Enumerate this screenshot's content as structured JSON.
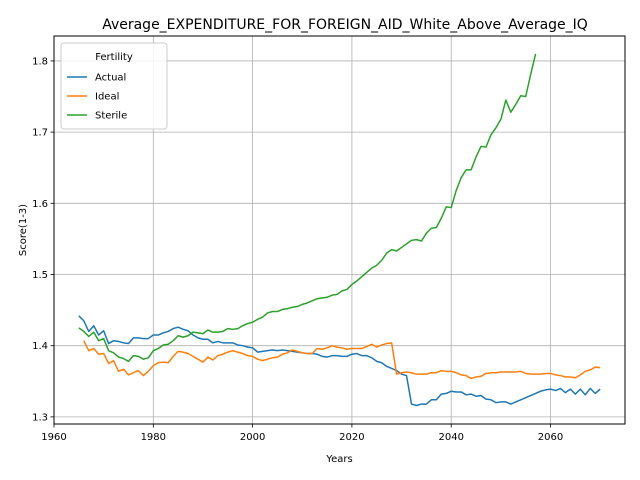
{
  "chart_data": {
    "type": "line",
    "title": "Average_EXPENDITURE_FOR_FOREIGN_AID_White_Above_Average_IQ",
    "xlabel": "Years",
    "ylabel": "Score(1-3)",
    "xlim": [
      1960,
      2075
    ],
    "ylim": [
      1.29,
      1.835
    ],
    "xticks": [
      1960,
      1980,
      2000,
      2020,
      2040,
      2060
    ],
    "yticks": [
      1.3,
      1.4,
      1.5,
      1.6,
      1.7,
      1.8
    ],
    "xtick_labels": [
      "1960",
      "1980",
      "2000",
      "2020",
      "2040",
      "2060"
    ],
    "ytick_labels": [
      "1.3",
      "1.4",
      "1.5",
      "1.6",
      "1.7",
      "1.8"
    ],
    "grid": true,
    "legend": {
      "title": "Fertility",
      "position": "top-left"
    },
    "series": [
      {
        "name": "Actual",
        "color": "#1f77b4",
        "points": [
          [
            1965,
            1.442
          ],
          [
            1966,
            1.435
          ],
          [
            1967,
            1.42
          ],
          [
            1968,
            1.428
          ],
          [
            1969,
            1.415
          ],
          [
            1970,
            1.421
          ],
          [
            1971,
            1.403
          ],
          [
            1972,
            1.407
          ],
          [
            1973,
            1.406
          ],
          [
            1974,
            1.404
          ],
          [
            1975,
            1.403
          ],
          [
            1976,
            1.411
          ],
          [
            1977,
            1.411
          ],
          [
            1978,
            1.41
          ],
          [
            1979,
            1.41
          ],
          [
            1980,
            1.415
          ],
          [
            1981,
            1.415
          ],
          [
            1982,
            1.418
          ],
          [
            1983,
            1.42
          ],
          [
            1984,
            1.424
          ],
          [
            1985,
            1.426
          ],
          [
            1986,
            1.423
          ],
          [
            1987,
            1.421
          ],
          [
            1988,
            1.415
          ],
          [
            1989,
            1.411
          ],
          [
            1990,
            1.409
          ],
          [
            1991,
            1.409
          ],
          [
            1992,
            1.404
          ],
          [
            1993,
            1.406
          ],
          [
            1994,
            1.404
          ],
          [
            1995,
            1.404
          ],
          [
            1996,
            1.404
          ],
          [
            1997,
            1.401
          ],
          [
            1998,
            1.4
          ],
          [
            1999,
            1.398
          ],
          [
            2000,
            1.397
          ],
          [
            2001,
            1.391
          ],
          [
            2002,
            1.392
          ],
          [
            2003,
            1.393
          ],
          [
            2004,
            1.394
          ],
          [
            2005,
            1.393
          ],
          [
            2006,
            1.394
          ],
          [
            2007,
            1.393
          ],
          [
            2008,
            1.392
          ],
          [
            2009,
            1.391
          ],
          [
            2010,
            1.39
          ],
          [
            2011,
            1.389
          ],
          [
            2012,
            1.389
          ],
          [
            2013,
            1.388
          ],
          [
            2014,
            1.385
          ],
          [
            2015,
            1.384
          ],
          [
            2016,
            1.386
          ],
          [
            2017,
            1.386
          ],
          [
            2018,
            1.385
          ],
          [
            2019,
            1.385
          ],
          [
            2020,
            1.388
          ],
          [
            2021,
            1.389
          ],
          [
            2022,
            1.386
          ],
          [
            2023,
            1.386
          ],
          [
            2024,
            1.383
          ],
          [
            2025,
            1.378
          ],
          [
            2026,
            1.376
          ],
          [
            2027,
            1.371
          ],
          [
            2028,
            1.368
          ],
          [
            2029,
            1.365
          ],
          [
            2030,
            1.36
          ],
          [
            2031,
            1.358
          ],
          [
            2032,
            1.318
          ],
          [
            2033,
            1.316
          ],
          [
            2034,
            1.318
          ],
          [
            2035,
            1.318
          ],
          [
            2036,
            1.324
          ],
          [
            2037,
            1.324
          ],
          [
            2038,
            1.332
          ],
          [
            2039,
            1.333
          ],
          [
            2040,
            1.336
          ],
          [
            2041,
            1.335
          ],
          [
            2042,
            1.335
          ],
          [
            2043,
            1.331
          ],
          [
            2044,
            1.332
          ],
          [
            2045,
            1.329
          ],
          [
            2046,
            1.33
          ],
          [
            2047,
            1.325
          ],
          [
            2048,
            1.324
          ],
          [
            2049,
            1.32
          ],
          [
            2050,
            1.321
          ],
          [
            2051,
            1.321
          ],
          [
            2052,
            1.318
          ],
          [
            2053,
            1.321
          ],
          [
            2054,
            1.324
          ],
          [
            2055,
            1.327
          ],
          [
            2056,
            1.33
          ],
          [
            2057,
            1.333
          ],
          [
            2058,
            1.336
          ],
          [
            2059,
            1.338
          ],
          [
            2060,
            1.339
          ],
          [
            2061,
            1.337
          ],
          [
            2062,
            1.34
          ],
          [
            2063,
            1.334
          ],
          [
            2064,
            1.339
          ],
          [
            2065,
            1.332
          ],
          [
            2066,
            1.339
          ],
          [
            2067,
            1.331
          ],
          [
            2068,
            1.34
          ],
          [
            2069,
            1.333
          ],
          [
            2070,
            1.339
          ]
        ]
      },
      {
        "name": "Ideal",
        "color": "#ff7f0e",
        "points": [
          [
            1966,
            1.407
          ],
          [
            1967,
            1.393
          ],
          [
            1968,
            1.396
          ],
          [
            1969,
            1.388
          ],
          [
            1970,
            1.389
          ],
          [
            1971,
            1.375
          ],
          [
            1972,
            1.379
          ],
          [
            1973,
            1.364
          ],
          [
            1974,
            1.367
          ],
          [
            1975,
            1.359
          ],
          [
            1976,
            1.362
          ],
          [
            1977,
            1.365
          ],
          [
            1978,
            1.358
          ],
          [
            1979,
            1.364
          ],
          [
            1980,
            1.372
          ],
          [
            1981,
            1.376
          ],
          [
            1982,
            1.377
          ],
          [
            1983,
            1.376
          ],
          [
            1984,
            1.385
          ],
          [
            1985,
            1.392
          ],
          [
            1986,
            1.391
          ],
          [
            1987,
            1.389
          ],
          [
            1988,
            1.385
          ],
          [
            1989,
            1.381
          ],
          [
            1990,
            1.377
          ],
          [
            1991,
            1.384
          ],
          [
            1992,
            1.38
          ],
          [
            1993,
            1.386
          ],
          [
            1994,
            1.388
          ],
          [
            1995,
            1.391
          ],
          [
            1996,
            1.393
          ],
          [
            1997,
            1.391
          ],
          [
            1998,
            1.389
          ],
          [
            1999,
            1.386
          ],
          [
            2000,
            1.385
          ],
          [
            2001,
            1.381
          ],
          [
            2002,
            1.379
          ],
          [
            2003,
            1.381
          ],
          [
            2004,
            1.383
          ],
          [
            2005,
            1.384
          ],
          [
            2006,
            1.388
          ],
          [
            2007,
            1.39
          ],
          [
            2008,
            1.394
          ],
          [
            2009,
            1.392
          ],
          [
            2010,
            1.39
          ],
          [
            2011,
            1.389
          ],
          [
            2012,
            1.389
          ],
          [
            2013,
            1.396
          ],
          [
            2014,
            1.395
          ],
          [
            2015,
            1.397
          ],
          [
            2016,
            1.4
          ],
          [
            2017,
            1.398
          ],
          [
            2018,
            1.397
          ],
          [
            2019,
            1.395
          ],
          [
            2020,
            1.396
          ],
          [
            2021,
            1.396
          ],
          [
            2022,
            1.396
          ],
          [
            2023,
            1.399
          ],
          [
            2024,
            1.402
          ],
          [
            2025,
            1.398
          ],
          [
            2026,
            1.401
          ],
          [
            2027,
            1.403
          ],
          [
            2028,
            1.404
          ],
          [
            2029,
            1.36
          ],
          [
            2030,
            1.362
          ],
          [
            2031,
            1.363
          ],
          [
            2032,
            1.362
          ],
          [
            2033,
            1.36
          ],
          [
            2034,
            1.36
          ],
          [
            2035,
            1.36
          ],
          [
            2036,
            1.362
          ],
          [
            2037,
            1.362
          ],
          [
            2038,
            1.365
          ],
          [
            2039,
            1.364
          ],
          [
            2040,
            1.364
          ],
          [
            2041,
            1.362
          ],
          [
            2042,
            1.359
          ],
          [
            2043,
            1.358
          ],
          [
            2044,
            1.354
          ],
          [
            2045,
            1.356
          ],
          [
            2046,
            1.357
          ],
          [
            2047,
            1.361
          ],
          [
            2048,
            1.362
          ],
          [
            2049,
            1.362
          ],
          [
            2050,
            1.363
          ],
          [
            2051,
            1.363
          ],
          [
            2052,
            1.363
          ],
          [
            2053,
            1.363
          ],
          [
            2054,
            1.364
          ],
          [
            2055,
            1.361
          ],
          [
            2056,
            1.36
          ],
          [
            2057,
            1.36
          ],
          [
            2058,
            1.36
          ],
          [
            2059,
            1.361
          ],
          [
            2060,
            1.361
          ],
          [
            2061,
            1.359
          ],
          [
            2062,
            1.358
          ],
          [
            2063,
            1.356
          ],
          [
            2064,
            1.356
          ],
          [
            2065,
            1.355
          ],
          [
            2066,
            1.359
          ],
          [
            2067,
            1.364
          ],
          [
            2068,
            1.366
          ],
          [
            2069,
            1.37
          ],
          [
            2070,
            1.369
          ]
        ]
      },
      {
        "name": "Sterile",
        "color": "#2ca02c",
        "points": [
          [
            1965,
            1.425
          ],
          [
            1966,
            1.42
          ],
          [
            1967,
            1.413
          ],
          [
            1968,
            1.419
          ],
          [
            1969,
            1.407
          ],
          [
            1970,
            1.41
          ],
          [
            1971,
            1.393
          ],
          [
            1972,
            1.39
          ],
          [
            1973,
            1.384
          ],
          [
            1974,
            1.382
          ],
          [
            1975,
            1.378
          ],
          [
            1976,
            1.386
          ],
          [
            1977,
            1.385
          ],
          [
            1978,
            1.381
          ],
          [
            1979,
            1.383
          ],
          [
            1980,
            1.393
          ],
          [
            1981,
            1.396
          ],
          [
            1982,
            1.401
          ],
          [
            1983,
            1.402
          ],
          [
            1984,
            1.407
          ],
          [
            1985,
            1.414
          ],
          [
            1986,
            1.412
          ],
          [
            1987,
            1.414
          ],
          [
            1988,
            1.419
          ],
          [
            1989,
            1.418
          ],
          [
            1990,
            1.417
          ],
          [
            1991,
            1.422
          ],
          [
            1992,
            1.419
          ],
          [
            1993,
            1.419
          ],
          [
            1994,
            1.42
          ],
          [
            1995,
            1.424
          ],
          [
            1996,
            1.423
          ],
          [
            1997,
            1.424
          ],
          [
            1998,
            1.428
          ],
          [
            1999,
            1.431
          ],
          [
            2000,
            1.433
          ],
          [
            2001,
            1.437
          ],
          [
            2002,
            1.44
          ],
          [
            2003,
            1.446
          ],
          [
            2004,
            1.448
          ],
          [
            2005,
            1.448
          ],
          [
            2006,
            1.451
          ],
          [
            2007,
            1.452
          ],
          [
            2008,
            1.454
          ],
          [
            2009,
            1.455
          ],
          [
            2010,
            1.458
          ],
          [
            2011,
            1.46
          ],
          [
            2012,
            1.463
          ],
          [
            2013,
            1.466
          ],
          [
            2014,
            1.467
          ],
          [
            2015,
            1.468
          ],
          [
            2016,
            1.471
          ],
          [
            2017,
            1.472
          ],
          [
            2018,
            1.477
          ],
          [
            2019,
            1.479
          ],
          [
            2020,
            1.486
          ],
          [
            2021,
            1.491
          ],
          [
            2022,
            1.497
          ],
          [
            2023,
            1.503
          ],
          [
            2024,
            1.509
          ],
          [
            2025,
            1.513
          ],
          [
            2026,
            1.52
          ],
          [
            2027,
            1.53
          ],
          [
            2028,
            1.535
          ],
          [
            2029,
            1.533
          ],
          [
            2030,
            1.538
          ],
          [
            2031,
            1.543
          ],
          [
            2032,
            1.548
          ],
          [
            2033,
            1.549
          ],
          [
            2034,
            1.547
          ],
          [
            2035,
            1.558
          ],
          [
            2036,
            1.565
          ],
          [
            2037,
            1.566
          ],
          [
            2038,
            1.579
          ],
          [
            2039,
            1.595
          ],
          [
            2040,
            1.594
          ],
          [
            2041,
            1.618
          ],
          [
            2042,
            1.636
          ],
          [
            2043,
            1.647
          ],
          [
            2044,
            1.647
          ],
          [
            2045,
            1.665
          ],
          [
            2046,
            1.68
          ],
          [
            2047,
            1.679
          ],
          [
            2048,
            1.696
          ],
          [
            2049,
            1.706
          ],
          [
            2050,
            1.718
          ],
          [
            2051,
            1.745
          ],
          [
            2052,
            1.728
          ],
          [
            2053,
            1.739
          ],
          [
            2054,
            1.751
          ],
          [
            2055,
            1.75
          ],
          [
            2056,
            1.781
          ],
          [
            2057,
            1.81
          ]
        ]
      }
    ]
  }
}
